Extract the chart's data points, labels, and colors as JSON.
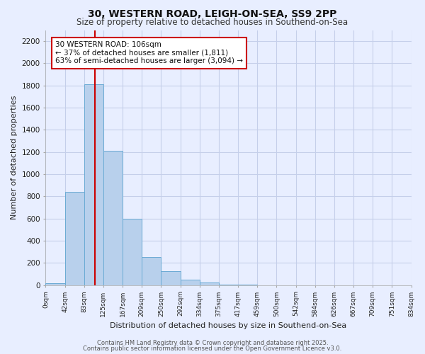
{
  "title": "30, WESTERN ROAD, LEIGH-ON-SEA, SS9 2PP",
  "subtitle": "Size of property relative to detached houses in Southend-on-Sea",
  "bar_values": [
    20,
    840,
    1810,
    1210,
    600,
    255,
    125,
    50,
    25,
    5,
    2,
    0,
    0,
    0,
    0,
    0,
    0,
    0,
    0
  ],
  "bin_edges": [
    0,
    42,
    83,
    125,
    167,
    209,
    250,
    292,
    334,
    375,
    417,
    459,
    500,
    542,
    584,
    626,
    667,
    709,
    751,
    834
  ],
  "bin_labels": [
    "0sqm",
    "42sqm",
    "83sqm",
    "125sqm",
    "167sqm",
    "209sqm",
    "250sqm",
    "292sqm",
    "334sqm",
    "375sqm",
    "417sqm",
    "459sqm",
    "500sqm",
    "542sqm",
    "584sqm",
    "626sqm",
    "667sqm",
    "709sqm",
    "751sqm",
    "834sqm"
  ],
  "bar_color": "#b8d0ec",
  "bar_edge_color": "#6aaad4",
  "vline_x": 106,
  "vline_color": "#cc0000",
  "ylabel": "Number of detached properties",
  "xlabel": "Distribution of detached houses by size in Southend-on-Sea",
  "ylim": [
    0,
    2300
  ],
  "yticks": [
    0,
    200,
    400,
    600,
    800,
    1000,
    1200,
    1400,
    1600,
    1800,
    2000,
    2200
  ],
  "annotation_title": "30 WESTERN ROAD: 106sqm",
  "annotation_line1": "← 37% of detached houses are smaller (1,811)",
  "annotation_line2": "63% of semi-detached houses are larger (3,094) →",
  "annotation_box_color": "#ffffff",
  "annotation_box_edge_color": "#cc0000",
  "footer1": "Contains HM Land Registry data © Crown copyright and database right 2025.",
  "footer2": "Contains public sector information licensed under the Open Government Licence v3.0.",
  "bg_color": "#e8eeff",
  "grid_color": "#c5cfea"
}
